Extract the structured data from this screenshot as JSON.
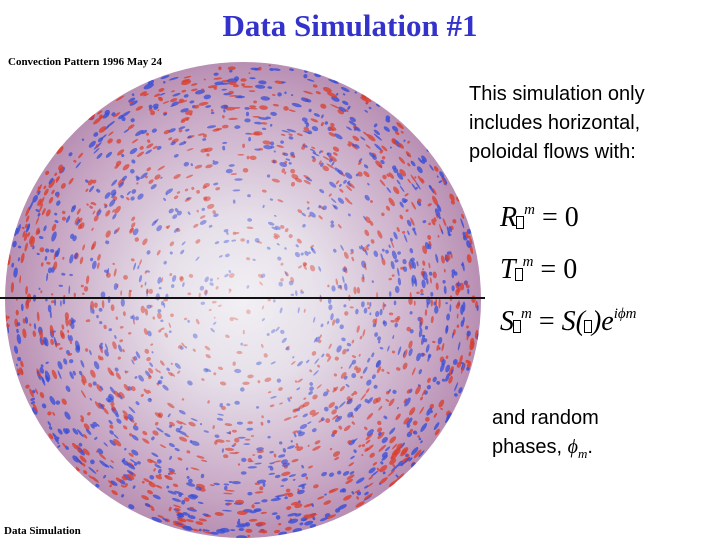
{
  "slide": {
    "title": "Data Simulation #1",
    "image_top_label": "Convection Pattern 1996 May 24",
    "image_bottom_label": "Data Simulation",
    "description_lines": [
      "This simulation only",
      "includes horizontal,",
      "poloidal flows with:"
    ],
    "equations": [
      {
        "lhs": "R",
        "sup": "m",
        "rhs": "= 0"
      },
      {
        "lhs": "T",
        "sup": "m",
        "rhs": "= 0"
      },
      {
        "lhs": "S",
        "sup": "m",
        "rhs_a": "= ",
        "rhs_func": "S(",
        "rhs_close": ")",
        "rhs_exp_base": "e",
        "rhs_exp": "iϕm"
      }
    ],
    "footer_line1": "and random",
    "footer_line2_prefix": "phases, ",
    "footer_symbol": "ϕ",
    "footer_sub": "m",
    "footer_suffix": "."
  },
  "colors": {
    "title": "#3333cc",
    "red": "#d9402f",
    "blue": "#3a4fd6",
    "background_disk": "#d8cfe0"
  }
}
